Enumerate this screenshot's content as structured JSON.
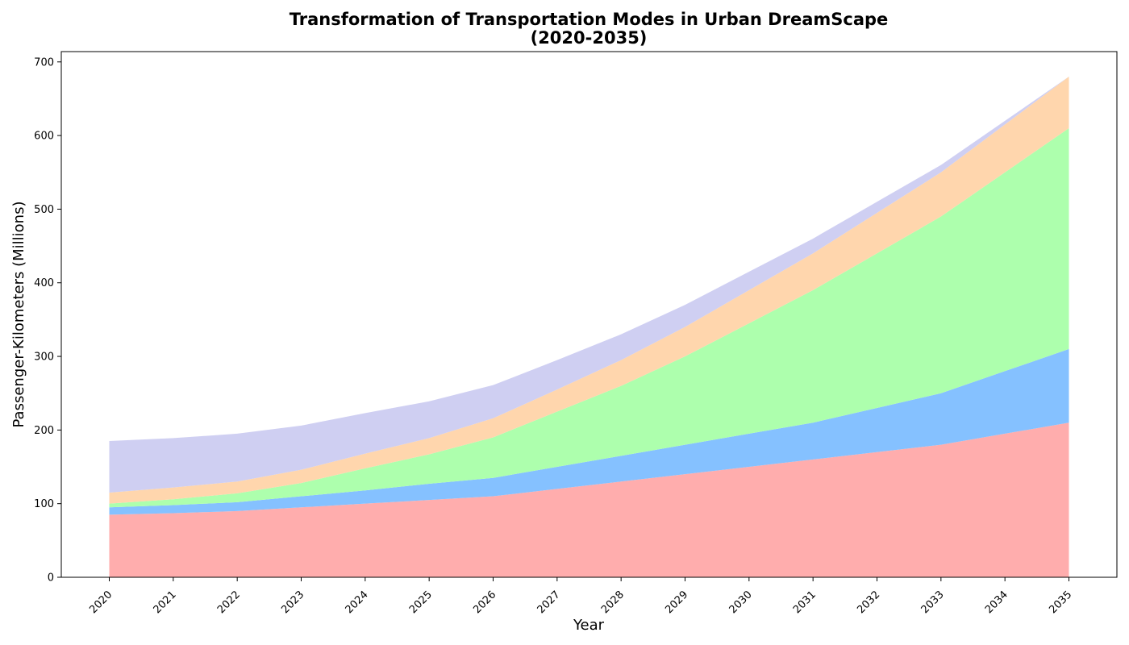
{
  "chart_data": {
    "type": "area",
    "stacked": true,
    "title": {
      "line1": "Transformation of Transportation Modes in Urban DreamScape",
      "line2": "(2020-2035)"
    },
    "xlabel": "Year",
    "ylabel": "Passenger-Kilometers (Millions)",
    "x": [
      2020,
      2021,
      2022,
      2023,
      2024,
      2025,
      2026,
      2027,
      2028,
      2029,
      2030,
      2031,
      2032,
      2033,
      2034,
      2035
    ],
    "x_tick_labels": [
      "2020",
      "2021",
      "2022",
      "2023",
      "2024",
      "2025",
      "2026",
      "2027",
      "2028",
      "2029",
      "2030",
      "2031",
      "2032",
      "2033",
      "2034",
      "2035"
    ],
    "y_ticks": [
      0,
      100,
      200,
      300,
      400,
      500,
      600,
      700
    ],
    "y_tick_labels": [
      "0",
      "100",
      "200",
      "300",
      "400",
      "500",
      "600",
      "700"
    ],
    "xlim": [
      2019.25,
      2035.75
    ],
    "ylim": [
      0,
      714
    ],
    "grid": false,
    "legend": "none",
    "series": [
      {
        "color": "#ffadad",
        "values": [
          85,
          87,
          90,
          95,
          100,
          105,
          110,
          120,
          130,
          140,
          150,
          160,
          170,
          180,
          195,
          210
        ]
      },
      {
        "color": "#85c1ff",
        "values": [
          10,
          11,
          12,
          15,
          18,
          22,
          25,
          30,
          35,
          40,
          45,
          50,
          60,
          70,
          85,
          100
        ]
      },
      {
        "color": "#adffad",
        "values": [
          5,
          8,
          12,
          18,
          30,
          40,
          55,
          75,
          95,
          120,
          150,
          180,
          210,
          240,
          270,
          300
        ]
      },
      {
        "color": "#ffd6ad",
        "values": [
          15,
          16,
          16,
          18,
          20,
          22,
          26,
          30,
          35,
          40,
          45,
          50,
          55,
          60,
          65,
          70
        ]
      },
      {
        "color": "#cfcff2",
        "values": [
          70,
          67,
          65,
          60,
          55,
          50,
          45,
          40,
          35,
          30,
          25,
          20,
          15,
          10,
          5,
          0
        ]
      }
    ]
  }
}
